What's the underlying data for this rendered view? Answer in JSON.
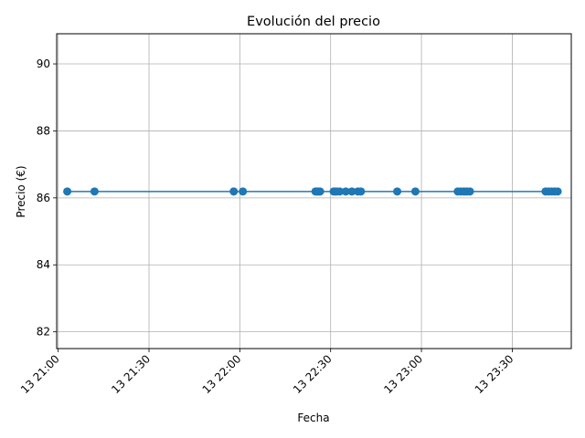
{
  "chart_data": {
    "type": "line",
    "title": "Evolución del precio",
    "xlabel": "Fecha",
    "ylabel": "Precio (€)",
    "x_range": [
      "13 20:59:30",
      "23:49:30"
    ],
    "ylim": [
      81.5,
      90.9
    ],
    "y_ticks": [
      82,
      84,
      86,
      88,
      90
    ],
    "x_ticks": [
      "21:00",
      "21:30",
      "22:00",
      "22:30",
      "23:00",
      "23:30"
    ],
    "x_tick_labels": [
      "13 21:00",
      "13 21:30",
      "13 22:00",
      "13 22:30",
      "13 23:00",
      "13 23:30"
    ],
    "grid": true,
    "series": [
      {
        "color": "#1f77b4",
        "marker": "circle",
        "points": [
          [
            "21:03",
            86.19
          ],
          [
            "21:12",
            86.19
          ],
          [
            "21:58",
            86.19
          ],
          [
            "22:01",
            86.19
          ],
          [
            "22:25",
            86.19
          ],
          [
            "22:25:30",
            86.19
          ],
          [
            "22:26",
            86.19
          ],
          [
            "22:26:30",
            86.19
          ],
          [
            "22:31",
            86.19
          ],
          [
            "22:31:30",
            86.19
          ],
          [
            "22:32",
            86.19
          ],
          [
            "22:33",
            86.19
          ],
          [
            "22:35",
            86.19
          ],
          [
            "22:37",
            86.19
          ],
          [
            "22:39",
            86.19
          ],
          [
            "22:40",
            86.19
          ],
          [
            "22:52",
            86.19
          ],
          [
            "22:58",
            86.19
          ],
          [
            "23:12",
            86.19
          ],
          [
            "23:13",
            86.19
          ],
          [
            "23:14",
            86.19
          ],
          [
            "23:15",
            86.19
          ],
          [
            "23:16",
            86.19
          ],
          [
            "23:41",
            86.19
          ],
          [
            "23:42",
            86.19
          ],
          [
            "23:43",
            86.19
          ],
          [
            "23:44",
            86.19
          ],
          [
            "23:45",
            86.19
          ]
        ]
      }
    ]
  }
}
